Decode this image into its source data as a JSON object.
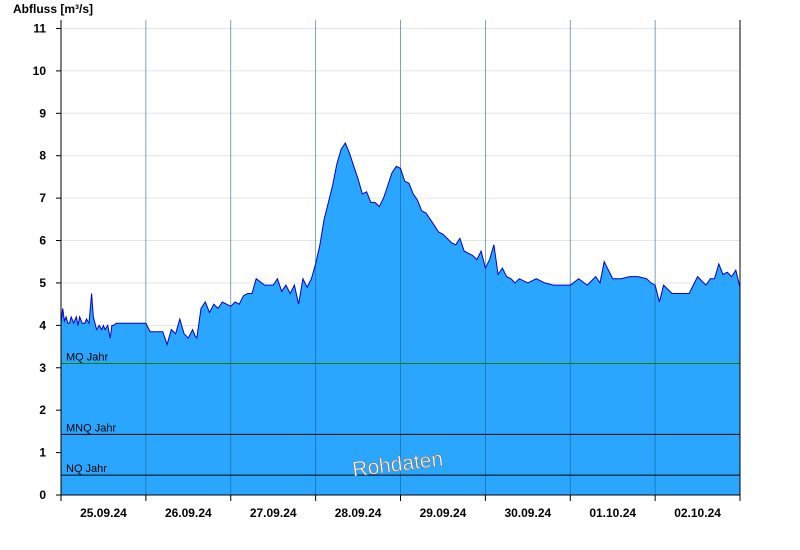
{
  "chart_data": {
    "type": "area",
    "ylabel": "Abfluss [m³/s]",
    "ylim": [
      0,
      11.2
    ],
    "yticks": [
      0,
      1,
      2,
      3,
      4,
      5,
      6,
      7,
      8,
      9,
      10,
      11
    ],
    "xlim": [
      0,
      8
    ],
    "day_labels": [
      "25.09.24",
      "26.09.24",
      "27.09.24",
      "28.09.24",
      "29.09.24",
      "30.09.24",
      "01.10.24",
      "02.10.24"
    ],
    "grid": "horizontal",
    "watermark": "Rohdaten",
    "colors": {
      "fill": "#2aa6ff",
      "line": "#0000c8",
      "mq": "#008000",
      "ref": "#000000"
    },
    "reference_lines": [
      {
        "name": "MQ Jahr",
        "value": 3.1,
        "color": "#008000"
      },
      {
        "name": "MNQ Jahr",
        "value": 1.43,
        "color": "#000000"
      },
      {
        "name": "NQ Jahr",
        "value": 0.47,
        "color": "#000000"
      }
    ],
    "series": [
      {
        "x": [
          0.0,
          0.02,
          0.04,
          0.06,
          0.08,
          0.1,
          0.12,
          0.15,
          0.18,
          0.2,
          0.22,
          0.25,
          0.28,
          0.3,
          0.33,
          0.36,
          0.38,
          0.4,
          0.42,
          0.45,
          0.48,
          0.5,
          0.52,
          0.55,
          0.58,
          0.6,
          0.62,
          0.65,
          0.7,
          0.8,
          0.9,
          1.0,
          1.05,
          1.1,
          1.2,
          1.25,
          1.3,
          1.35,
          1.4,
          1.45,
          1.5,
          1.55,
          1.58,
          1.6,
          1.65,
          1.7,
          1.75,
          1.8,
          1.85,
          1.9,
          2.0,
          2.05,
          2.1,
          2.15,
          2.2,
          2.25,
          2.3,
          2.4,
          2.5,
          2.55,
          2.6,
          2.65,
          2.7,
          2.75,
          2.8,
          2.85,
          2.9,
          2.95,
          3.0,
          3.05,
          3.1,
          3.15,
          3.2,
          3.25,
          3.3,
          3.35,
          3.4,
          3.45,
          3.5,
          3.55,
          3.6,
          3.65,
          3.7,
          3.75,
          3.8,
          3.85,
          3.9,
          3.95,
          4.0,
          4.05,
          4.1,
          4.15,
          4.2,
          4.25,
          4.3,
          4.35,
          4.4,
          4.45,
          4.5,
          4.55,
          4.6,
          4.65,
          4.7,
          4.75,
          4.8,
          4.85,
          4.9,
          4.95,
          5.0,
          5.05,
          5.1,
          5.15,
          5.2,
          5.25,
          5.3,
          5.35,
          5.4,
          5.5,
          5.6,
          5.7,
          5.8,
          5.9,
          6.0,
          6.1,
          6.2,
          6.3,
          6.35,
          6.4,
          6.5,
          6.6,
          6.7,
          6.8,
          6.9,
          6.95,
          7.0,
          7.05,
          7.1,
          7.2,
          7.3,
          7.4,
          7.5,
          7.6,
          7.65,
          7.7,
          7.75,
          7.8,
          7.85,
          7.9,
          7.95,
          8.0
        ],
        "values": [
          4.05,
          4.4,
          4.1,
          4.2,
          4.05,
          4.05,
          4.2,
          4.05,
          4.2,
          4.0,
          4.2,
          4.05,
          4.05,
          4.15,
          4.05,
          4.75,
          4.2,
          4.05,
          3.9,
          4.0,
          3.9,
          4.0,
          3.9,
          4.0,
          3.7,
          4.0,
          4.0,
          4.05,
          4.05,
          4.05,
          4.05,
          4.05,
          3.85,
          3.85,
          3.85,
          3.55,
          3.9,
          3.8,
          4.15,
          3.8,
          3.7,
          3.9,
          3.75,
          3.7,
          4.4,
          4.55,
          4.3,
          4.5,
          4.4,
          4.55,
          4.45,
          4.55,
          4.5,
          4.7,
          4.75,
          4.75,
          5.1,
          4.95,
          4.95,
          5.1,
          4.8,
          4.95,
          4.75,
          4.95,
          4.5,
          5.1,
          4.9,
          5.1,
          5.45,
          5.9,
          6.5,
          6.9,
          7.3,
          7.8,
          8.15,
          8.3,
          8.05,
          7.75,
          7.45,
          7.1,
          7.15,
          6.9,
          6.9,
          6.8,
          7.0,
          7.3,
          7.6,
          7.75,
          7.7,
          7.4,
          7.35,
          7.1,
          6.95,
          6.7,
          6.65,
          6.5,
          6.35,
          6.2,
          6.15,
          6.05,
          5.95,
          5.9,
          6.05,
          5.75,
          5.7,
          5.65,
          5.55,
          5.75,
          5.35,
          5.55,
          5.9,
          5.2,
          5.35,
          5.15,
          5.1,
          5.0,
          5.1,
          5.0,
          5.1,
          5.0,
          4.95,
          4.95,
          4.95,
          5.1,
          4.95,
          5.15,
          5.0,
          5.5,
          5.1,
          5.1,
          5.15,
          5.15,
          5.1,
          5.0,
          4.95,
          4.55,
          4.95,
          4.75,
          4.75,
          4.75,
          5.15,
          4.95,
          5.1,
          5.1,
          5.45,
          5.2,
          5.25,
          5.15,
          5.3,
          4.9
        ],
        "line_color": "#0000c8",
        "fill_color": "#2aa6ff"
      }
    ]
  }
}
